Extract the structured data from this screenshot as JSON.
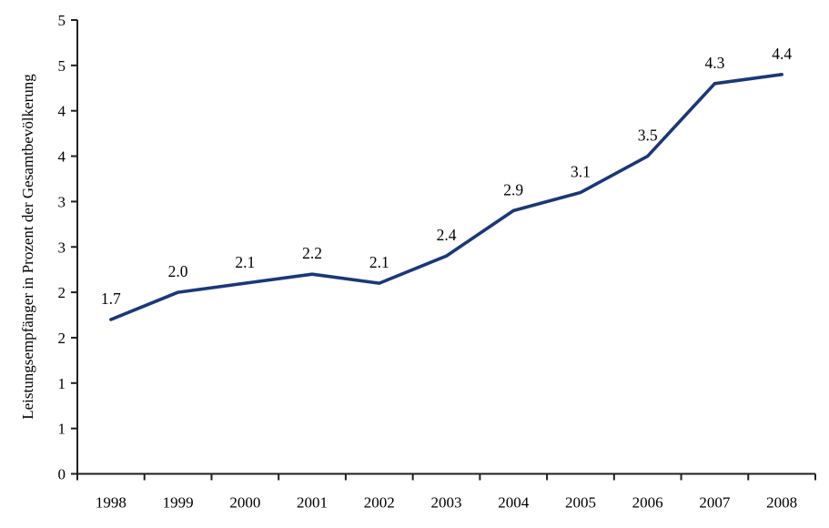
{
  "chart_data": {
    "type": "line",
    "categories": [
      "1998",
      "1999",
      "2000",
      "2001",
      "2002",
      "2003",
      "2004",
      "2005",
      "2006",
      "2007",
      "2008"
    ],
    "values": [
      1.7,
      2.0,
      2.1,
      2.2,
      2.1,
      2.4,
      2.9,
      3.1,
      3.5,
      4.3,
      4.4
    ],
    "point_labels": [
      "1.7",
      "2.0",
      "2.1",
      "2.2",
      "2.1",
      "2.4",
      "2.9",
      "3.1",
      "3.5",
      "4.3",
      "4.4"
    ],
    "xlabel": "",
    "ylabel": "Leistungsempfänger in Prozent der Gesamtbevölkerung",
    "ylim": [
      0,
      5
    ],
    "ytick_step": 0.5,
    "ytick_labels_top_to_bottom": [
      "5",
      "5",
      "4",
      "4",
      "3",
      "3",
      "2",
      "2",
      "1",
      "1",
      "0"
    ],
    "grid": false,
    "legend": "none",
    "line_color": "#1a3878",
    "axis_color": "#1f1f1f",
    "text_color": "#000000"
  }
}
